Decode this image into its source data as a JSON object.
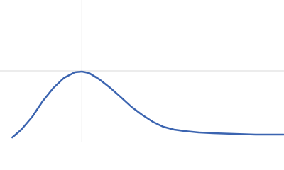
{
  "chart_data": {
    "type": "line",
    "x": [
      0.26,
      0.45,
      0.68,
      0.9,
      1.13,
      1.35,
      1.58,
      1.73,
      1.88,
      2.1,
      2.33,
      2.55,
      2.78,
      3.0,
      3.23,
      3.45,
      3.68,
      3.9,
      4.2,
      4.5,
      4.95,
      5.4,
      5.99
    ],
    "series": [
      {
        "color": "#3b64b0",
        "values": [
          0.066,
          0.187,
          0.385,
          0.627,
          0.836,
          0.99,
          1.078,
          1.089,
          1.067,
          0.968,
          0.836,
          0.693,
          0.539,
          0.418,
          0.308,
          0.231,
          0.187,
          0.165,
          0.143,
          0.132,
          0.121,
          0.11,
          0.11
        ]
      }
    ],
    "xlim": [
      0,
      6
    ],
    "ylim": [
      0,
      2.2
    ],
    "crosshair": {
      "x": 1.73,
      "y": 1.1,
      "color": "#d9d9d9"
    }
  }
}
